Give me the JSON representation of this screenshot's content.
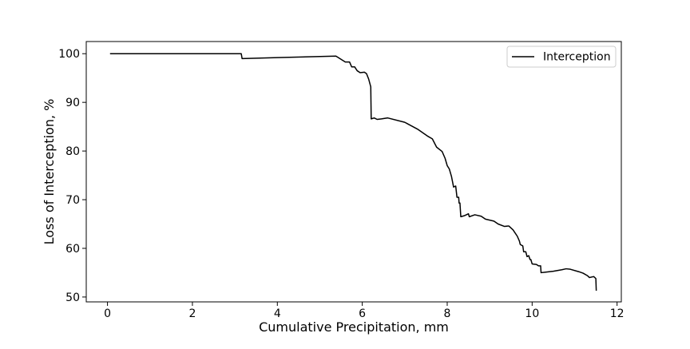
{
  "chart_data": {
    "type": "line",
    "title": "",
    "xlabel": "Cumulative Precipitation, mm",
    "ylabel": "Loss of Interception, %",
    "xlim": [
      -0.5,
      12.1
    ],
    "ylim": [
      49,
      102.5
    ],
    "xticks": [
      0,
      2,
      4,
      6,
      8,
      10,
      12
    ],
    "yticks": [
      50,
      60,
      70,
      80,
      90,
      100
    ],
    "grid": false,
    "legend": {
      "position": "top-right",
      "entries": [
        "Interception"
      ]
    },
    "series": [
      {
        "name": "Interception",
        "color": "#000000",
        "points": [
          [
            0.06,
            100.0
          ],
          [
            3.15,
            100.0
          ],
          [
            3.17,
            99.0
          ],
          [
            4.0,
            99.2
          ],
          [
            5.38,
            99.5
          ],
          [
            5.6,
            98.3
          ],
          [
            5.7,
            98.3
          ],
          [
            5.75,
            97.3
          ],
          [
            5.82,
            97.3
          ],
          [
            5.88,
            96.5
          ],
          [
            5.95,
            96.1
          ],
          [
            6.05,
            96.2
          ],
          [
            6.1,
            95.9
          ],
          [
            6.15,
            94.8
          ],
          [
            6.2,
            93.2
          ],
          [
            6.21,
            86.6
          ],
          [
            6.28,
            86.8
          ],
          [
            6.35,
            86.5
          ],
          [
            6.45,
            86.6
          ],
          [
            6.6,
            86.8
          ],
          [
            7.0,
            85.9
          ],
          [
            7.3,
            84.5
          ],
          [
            7.55,
            83.0
          ],
          [
            7.65,
            82.5
          ],
          [
            7.75,
            80.8
          ],
          [
            7.88,
            79.9
          ],
          [
            7.95,
            78.5
          ],
          [
            8.0,
            77.0
          ],
          [
            8.05,
            76.3
          ],
          [
            8.1,
            74.8
          ],
          [
            8.15,
            72.6
          ],
          [
            8.2,
            72.8
          ],
          [
            8.23,
            70.5
          ],
          [
            8.27,
            70.5
          ],
          [
            8.28,
            69.3
          ],
          [
            8.3,
            69.3
          ],
          [
            8.32,
            66.5
          ],
          [
            8.4,
            66.7
          ],
          [
            8.5,
            67.1
          ],
          [
            8.52,
            66.5
          ],
          [
            8.65,
            66.9
          ],
          [
            8.8,
            66.6
          ],
          [
            8.9,
            66.0
          ],
          [
            9.1,
            65.6
          ],
          [
            9.2,
            65.0
          ],
          [
            9.35,
            64.5
          ],
          [
            9.45,
            64.6
          ],
          [
            9.55,
            63.8
          ],
          [
            9.65,
            62.5
          ],
          [
            9.7,
            61.5
          ],
          [
            9.72,
            60.8
          ],
          [
            9.78,
            60.5
          ],
          [
            9.8,
            59.3
          ],
          [
            9.85,
            59.3
          ],
          [
            9.88,
            58.3
          ],
          [
            9.92,
            58.5
          ],
          [
            9.95,
            57.7
          ],
          [
            9.97,
            57.7
          ],
          [
            10.0,
            56.8
          ],
          [
            10.1,
            56.7
          ],
          [
            10.15,
            56.4
          ],
          [
            10.2,
            56.4
          ],
          [
            10.21,
            55.0
          ],
          [
            10.3,
            55.1
          ],
          [
            10.5,
            55.3
          ],
          [
            10.7,
            55.6
          ],
          [
            10.8,
            55.8
          ],
          [
            10.9,
            55.7
          ],
          [
            11.1,
            55.2
          ],
          [
            11.2,
            54.9
          ],
          [
            11.3,
            54.4
          ],
          [
            11.35,
            54.0
          ],
          [
            11.45,
            54.2
          ],
          [
            11.5,
            53.8
          ],
          [
            11.51,
            51.3
          ]
        ]
      }
    ]
  }
}
